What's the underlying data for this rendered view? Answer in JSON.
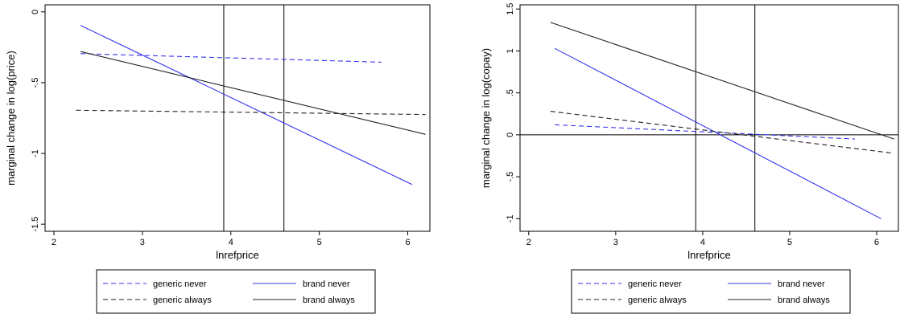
{
  "chart_data": [
    {
      "type": "line",
      "xlabel": "lnrefprice",
      "ylabel": "marginal change in log(price)",
      "xlim": [
        1.9,
        6.25
      ],
      "ylim": [
        -1.55,
        0.05
      ],
      "xticks": [
        2,
        3,
        4,
        5,
        6
      ],
      "xtick_labels": [
        "2",
        "3",
        "4",
        "5",
        "6"
      ],
      "yticks": [
        0,
        -0.5,
        -1,
        -1.5
      ],
      "ytick_labels": [
        "0",
        "-.5",
        "-1",
        "-1.5"
      ],
      "vlines": [
        3.92,
        4.6
      ],
      "hlines": [],
      "legend": "bottom",
      "series": [
        {
          "name": "generic never",
          "color": "#3333ee",
          "dash": "dashed",
          "x": [
            2.3,
            5.7
          ],
          "y": [
            -0.295,
            -0.355
          ]
        },
        {
          "name": "brand never",
          "color": "#3333ee",
          "dash": "solid",
          "x": [
            2.3,
            6.05
          ],
          "y": [
            -0.095,
            -1.22
          ]
        },
        {
          "name": "generic always",
          "color": "#222222",
          "dash": "dashed",
          "x": [
            2.25,
            6.2
          ],
          "y": [
            -0.695,
            -0.725
          ]
        },
        {
          "name": "brand always",
          "color": "#222222",
          "dash": "solid",
          "x": [
            2.3,
            6.2
          ],
          "y": [
            -0.28,
            -0.865
          ]
        }
      ]
    },
    {
      "type": "line",
      "xlabel": "lnrefprice",
      "ylabel": "marginal change in log(copay)",
      "xlim": [
        1.9,
        6.25
      ],
      "ylim": [
        -1.15,
        1.55
      ],
      "xticks": [
        2,
        3,
        4,
        5,
        6
      ],
      "xtick_labels": [
        "2",
        "3",
        "4",
        "5",
        "6"
      ],
      "yticks": [
        1.5,
        1,
        0.5,
        0,
        -0.5,
        -1
      ],
      "ytick_labels": [
        "1.5",
        "1",
        ".5",
        "0",
        "-.5",
        "-1"
      ],
      "vlines": [
        3.92,
        4.6
      ],
      "hlines": [
        0
      ],
      "legend": "bottom",
      "series": [
        {
          "name": "generic never",
          "color": "#3333ee",
          "dash": "dashed",
          "x": [
            2.3,
            5.75
          ],
          "y": [
            0.12,
            -0.05
          ]
        },
        {
          "name": "brand never",
          "color": "#3333ee",
          "dash": "solid",
          "x": [
            2.3,
            6.05
          ],
          "y": [
            1.03,
            -1.0
          ]
        },
        {
          "name": "generic always",
          "color": "#222222",
          "dash": "dashed",
          "x": [
            2.25,
            6.2
          ],
          "y": [
            0.28,
            -0.22
          ]
        },
        {
          "name": "brand always",
          "color": "#222222",
          "dash": "solid",
          "x": [
            2.25,
            6.2
          ],
          "y": [
            1.34,
            -0.05
          ]
        }
      ]
    }
  ]
}
